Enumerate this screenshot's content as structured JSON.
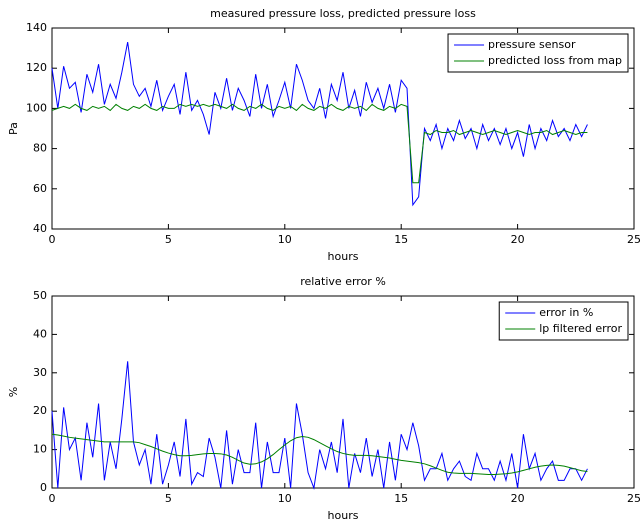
{
  "chart_data": [
    {
      "type": "line",
      "title": "measured pressure loss, predicted pressure loss",
      "xlabel": "hours",
      "ylabel": "Pa",
      "xlim": [
        0,
        25
      ],
      "ylim": [
        40,
        140
      ],
      "xticks": [
        0,
        5,
        10,
        15,
        20,
        25
      ],
      "yticks": [
        40,
        60,
        80,
        100,
        120,
        140
      ],
      "legend": "upper right",
      "x": [
        0,
        0.25,
        0.5,
        0.75,
        1,
        1.25,
        1.5,
        1.75,
        2,
        2.25,
        2.5,
        2.75,
        3,
        3.25,
        3.5,
        3.75,
        4,
        4.25,
        4.5,
        4.75,
        5,
        5.25,
        5.5,
        5.75,
        6,
        6.25,
        6.5,
        6.75,
        7,
        7.25,
        7.5,
        7.75,
        8,
        8.25,
        8.5,
        8.75,
        9,
        9.25,
        9.5,
        9.75,
        10,
        10.25,
        10.5,
        10.75,
        11,
        11.25,
        11.5,
        11.75,
        12,
        12.25,
        12.5,
        12.75,
        13,
        13.25,
        13.5,
        13.75,
        14,
        14.25,
        14.5,
        14.75,
        15,
        15.25,
        15.5,
        15.75,
        16,
        16.25,
        16.5,
        16.75,
        17,
        17.25,
        17.5,
        17.75,
        18,
        18.25,
        18.5,
        18.75,
        19,
        19.25,
        19.5,
        19.75,
        20,
        20.25,
        20.5,
        20.75,
        21,
        21.25,
        21.5,
        21.75,
        22,
        22.25,
        22.5,
        22.75,
        23
      ],
      "series": [
        {
          "name": "pressure sensor",
          "color": "#0000ff",
          "values": [
            120,
            100,
            121,
            110,
            113,
            98,
            117,
            108,
            122,
            102,
            112,
            105,
            118,
            133,
            112,
            106,
            110,
            101,
            114,
            99,
            106,
            112,
            97,
            118,
            99,
            104,
            97,
            87,
            108,
            100,
            115,
            99,
            110,
            104,
            96,
            117,
            100,
            112,
            96,
            104,
            113,
            100,
            122,
            114,
            104,
            100,
            110,
            95,
            112,
            104,
            118,
            100,
            109,
            96,
            113,
            103,
            110,
            100,
            112,
            98,
            114,
            110,
            52,
            56,
            90,
            84,
            92,
            80,
            90,
            84,
            94,
            85,
            90,
            80,
            92,
            84,
            90,
            82,
            90,
            80,
            88,
            76,
            92,
            80,
            90,
            84,
            94,
            86,
            90,
            84,
            92,
            86,
            92
          ]
        },
        {
          "name": "predicted loss from map",
          "color": "#008000",
          "values": [
            99,
            100,
            101,
            100,
            102,
            100,
            99,
            101,
            100,
            101,
            99,
            102,
            100,
            99,
            101,
            100,
            102,
            100,
            99,
            101,
            100,
            100,
            102,
            101,
            102,
            101,
            102,
            101,
            102,
            101,
            100,
            102,
            100,
            99,
            101,
            100,
            102,
            100,
            99,
            101,
            100,
            101,
            99,
            102,
            100,
            99,
            101,
            100,
            102,
            100,
            99,
            101,
            100,
            101,
            99,
            102,
            100,
            99,
            101,
            100,
            102,
            101,
            63,
            63,
            88,
            87,
            89,
            88,
            88,
            89,
            87,
            88,
            89,
            88,
            87,
            88,
            89,
            88,
            87,
            88,
            89,
            88,
            87,
            88,
            88,
            89,
            87,
            88,
            89,
            88,
            87,
            88,
            88
          ]
        }
      ]
    },
    {
      "type": "line",
      "title": "relative error %",
      "xlabel": "hours",
      "ylabel": "%",
      "xlim": [
        0,
        25
      ],
      "ylim": [
        0,
        50
      ],
      "xticks": [
        0,
        5,
        10,
        15,
        20,
        25
      ],
      "yticks": [
        0,
        10,
        20,
        30,
        40,
        50
      ],
      "legend": "upper right",
      "x": [
        0,
        0.25,
        0.5,
        0.75,
        1,
        1.25,
        1.5,
        1.75,
        2,
        2.25,
        2.5,
        2.75,
        3,
        3.25,
        3.5,
        3.75,
        4,
        4.25,
        4.5,
        4.75,
        5,
        5.25,
        5.5,
        5.75,
        6,
        6.25,
        6.5,
        6.75,
        7,
        7.25,
        7.5,
        7.75,
        8,
        8.25,
        8.5,
        8.75,
        9,
        9.25,
        9.5,
        9.75,
        10,
        10.25,
        10.5,
        10.75,
        11,
        11.25,
        11.5,
        11.75,
        12,
        12.25,
        12.5,
        12.75,
        13,
        13.25,
        13.5,
        13.75,
        14,
        14.25,
        14.5,
        14.75,
        15,
        15.25,
        15.5,
        15.75,
        16,
        16.25,
        16.5,
        16.75,
        17,
        17.25,
        17.5,
        17.75,
        18,
        18.25,
        18.5,
        18.75,
        19,
        19.25,
        19.5,
        19.75,
        20,
        20.25,
        20.5,
        20.75,
        21,
        21.25,
        21.5,
        21.75,
        22,
        22.25,
        22.5,
        22.75,
        23
      ],
      "series": [
        {
          "name": "error in %",
          "color": "#0000ff",
          "values": [
            20,
            0,
            21,
            10,
            13,
            2,
            17,
            8,
            22,
            2,
            12,
            5,
            18,
            33,
            12,
            6,
            10,
            1,
            14,
            1,
            6,
            12,
            3,
            18,
            1,
            4,
            3,
            13,
            8,
            0,
            15,
            1,
            10,
            4,
            4,
            17,
            0,
            12,
            4,
            4,
            13,
            0,
            22,
            14,
            4,
            0,
            10,
            5,
            12,
            4,
            18,
            0,
            9,
            4,
            13,
            3,
            10,
            0,
            12,
            2,
            14,
            10,
            17,
            11,
            2,
            5,
            5,
            9,
            2,
            5,
            7,
            3,
            2,
            9,
            5,
            5,
            2,
            7,
            2,
            9,
            0,
            14,
            5,
            9,
            2,
            5,
            7,
            2,
            2,
            5,
            5,
            2,
            5
          ]
        },
        {
          "name": "lp filtered error",
          "color": "#008000",
          "values": [
            14,
            13.8,
            13.5,
            13.2,
            13,
            12.8,
            12.6,
            12.4,
            12.2,
            12,
            12,
            12,
            12,
            12,
            12,
            11.8,
            11.3,
            10.8,
            10.2,
            9.6,
            9.1,
            8.7,
            8.4,
            8.4,
            8.5,
            8.7,
            8.9,
            9,
            9,
            8.9,
            8.6,
            8,
            7.2,
            6.5,
            6.2,
            6.3,
            6.8,
            7.6,
            8.7,
            10,
            11.2,
            12.3,
            13.1,
            13.4,
            13.2,
            12.6,
            11.8,
            11,
            10.2,
            9.5,
            9,
            8.7,
            8.5,
            8.5,
            8.5,
            8.4,
            8.2,
            8,
            7.8,
            7.5,
            7.2,
            7,
            6.8,
            6.6,
            6.3,
            5.8,
            5.2,
            4.6,
            4.1,
            3.9,
            3.8,
            3.8,
            3.8,
            3.7,
            3.6,
            3.5,
            3.5,
            3.6,
            3.7,
            3.9,
            4.2,
            4.6,
            5,
            5.4,
            5.7,
            5.9,
            6,
            5.9,
            5.7,
            5.3,
            4.9,
            4.5,
            4.3
          ]
        }
      ]
    }
  ]
}
